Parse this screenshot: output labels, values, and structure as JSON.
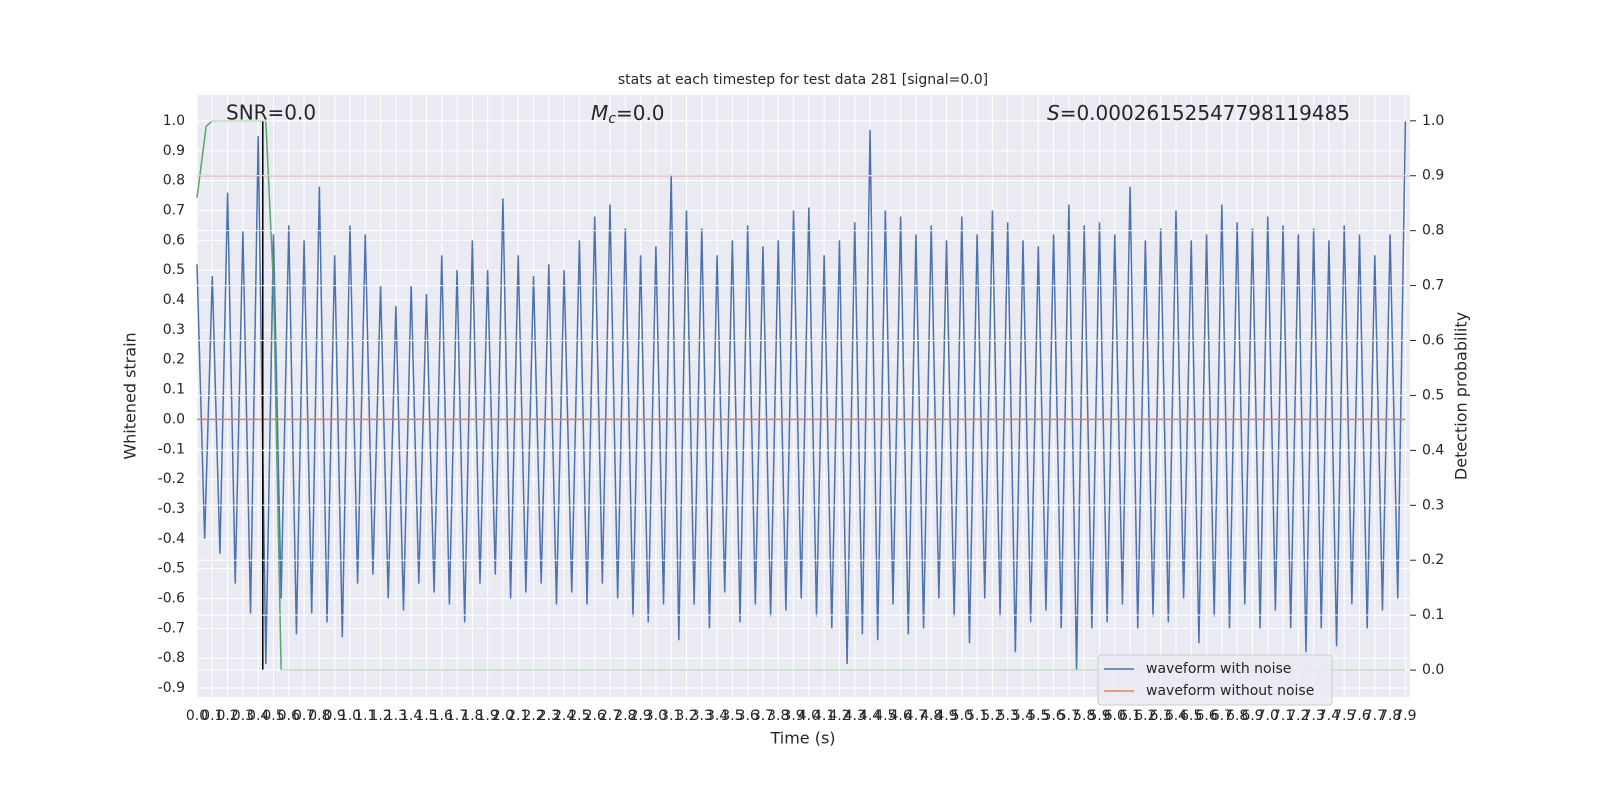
{
  "chart_data": {
    "type": "line",
    "title": "stats at each timestep for test data 281 [signal=0.0]",
    "x_label": "Time (s)",
    "y_label": "Whitened strain",
    "y2_label": "Detection probability",
    "annotations": {
      "snr": "SNR=0.0",
      "mc_symbol": "M",
      "mc_subscript": "c",
      "mc_value": "=0.0",
      "s_symbol": "S",
      "s_value": "=0.00026152547798119485"
    },
    "xlim": [
      0,
      7.93
    ],
    "ylim": [
      -0.93,
      1.087
    ],
    "y2lim": [
      -0.049,
      1.047
    ],
    "xticks": [
      {
        "value": 0,
        "label": "0.0"
      },
      0.1,
      0.2,
      0.3,
      0.4,
      0.5,
      0.6,
      0.7,
      0.8,
      0.9,
      {
        "value": 1,
        "label": "1.0"
      },
      1.1,
      1.2,
      1.3,
      1.4,
      1.5,
      1.6,
      1.7,
      1.8,
      1.9,
      {
        "value": 2,
        "label": "2.0"
      },
      2.1,
      2.2,
      2.3,
      2.4,
      2.5,
      2.6,
      2.7,
      2.8,
      2.9,
      {
        "value": 3,
        "label": "3.0"
      },
      3.1,
      3.2,
      3.3,
      3.4,
      3.5,
      3.6,
      3.7,
      3.8,
      3.9,
      {
        "value": 4,
        "label": "4.0"
      },
      4.1,
      4.2,
      4.3,
      4.4,
      4.5,
      4.6,
      4.7,
      4.8,
      4.9,
      {
        "value": 5,
        "label": "5.0"
      },
      5.1,
      5.2,
      5.3,
      5.4,
      5.5,
      5.6,
      5.7,
      5.8,
      5.9,
      {
        "value": 6,
        "label": "6.0"
      },
      6.1,
      6.2,
      6.3,
      6.4,
      6.5,
      6.6,
      6.7,
      6.8,
      6.9,
      {
        "value": 7,
        "label": "7.0"
      },
      7.1,
      7.2,
      7.3,
      7.4,
      7.5,
      7.6,
      7.7,
      7.8,
      7.9
    ],
    "yticks": [
      {
        "value": 1,
        "label": "1.0"
      },
      0.9,
      0.8,
      0.7,
      0.6,
      0.5,
      0.4,
      0.3,
      0.2,
      0.1,
      {
        "value": 0,
        "label": "0.0"
      },
      -0.1,
      -0.2,
      -0.3,
      -0.4,
      -0.5,
      -0.6,
      -0.7,
      -0.8,
      -0.9
    ],
    "y2ticks": [
      {
        "value": 0,
        "label": "0.0"
      },
      0.1,
      0.2,
      0.3,
      0.4,
      0.5,
      0.6,
      0.7,
      0.8,
      0.9,
      {
        "value": 1,
        "label": "1.0"
      }
    ],
    "grid": true,
    "legend": "lower right",
    "series": [
      {
        "name": "waveform with noise",
        "color": "#4c72b0",
        "x": [
          0,
          0.05,
          0.1,
          0.15,
          0.2,
          0.25,
          0.3,
          0.35,
          0.4,
          0.45,
          0.5,
          0.55,
          0.6,
          0.65,
          0.7,
          0.75,
          0.8,
          0.85,
          0.9,
          0.95,
          1,
          1.05,
          1.1,
          1.15,
          1.2,
          1.25,
          1.3,
          1.35,
          1.4,
          1.45,
          1.5,
          1.55,
          1.6,
          1.65,
          1.7,
          1.75,
          1.8,
          1.85,
          1.9,
          1.95,
          2,
          2.05,
          2.1,
          2.15,
          2.2,
          2.25,
          2.3,
          2.35,
          2.4,
          2.45,
          2.5,
          2.55,
          2.6,
          2.65,
          2.7,
          2.75,
          2.8,
          2.85,
          2.9,
          2.95,
          3,
          3.05,
          3.1,
          3.15,
          3.2,
          3.25,
          3.3,
          3.35,
          3.4,
          3.45,
          3.5,
          3.55,
          3.6,
          3.65,
          3.7,
          3.75,
          3.8,
          3.85,
          3.9,
          3.95,
          4,
          4.05,
          4.1,
          4.15,
          4.2,
          4.25,
          4.3,
          4.35,
          4.4,
          4.45,
          4.5,
          4.55,
          4.6,
          4.65,
          4.7,
          4.75,
          4.8,
          4.85,
          4.9,
          4.95,
          5,
          5.05,
          5.1,
          5.15,
          5.2,
          5.25,
          5.3,
          5.35,
          5.4,
          5.45,
          5.5,
          5.55,
          5.6,
          5.65,
          5.7,
          5.75,
          5.8,
          5.85,
          5.9,
          5.95,
          6,
          6.05,
          6.1,
          6.15,
          6.2,
          6.25,
          6.3,
          6.35,
          6.4,
          6.45,
          6.5,
          6.55,
          6.6,
          6.65,
          6.7,
          6.75,
          6.8,
          6.85,
          6.9,
          6.95,
          7,
          7.05,
          7.1,
          7.15,
          7.2,
          7.25,
          7.3,
          7.35,
          7.4,
          7.45,
          7.5,
          7.55,
          7.6,
          7.65,
          7.7,
          7.75,
          7.8,
          7.85,
          7.9
        ],
        "values": [
          0.52,
          -0.4,
          0.48,
          -0.45,
          0.76,
          -0.55,
          0.63,
          -0.65,
          0.95,
          -0.82,
          0.62,
          -0.6,
          0.65,
          -0.72,
          0.6,
          -0.65,
          0.78,
          -0.68,
          0.55,
          -0.73,
          0.65,
          -0.55,
          0.62,
          -0.52,
          0.45,
          -0.6,
          0.38,
          -0.64,
          0.45,
          -0.55,
          0.42,
          -0.58,
          0.55,
          -0.62,
          0.5,
          -0.68,
          0.6,
          -0.55,
          0.5,
          -0.52,
          0.74,
          -0.6,
          0.55,
          -0.58,
          0.48,
          -0.55,
          0.52,
          -0.62,
          0.5,
          -0.58,
          0.6,
          -0.62,
          0.68,
          -0.55,
          0.72,
          -0.6,
          0.64,
          -0.66,
          0.55,
          -0.68,
          0.58,
          -0.62,
          0.82,
          -0.74,
          0.7,
          -0.62,
          0.64,
          -0.7,
          0.55,
          -0.58,
          0.6,
          -0.68,
          0.65,
          -0.62,
          0.58,
          -0.66,
          0.6,
          -0.64,
          0.7,
          -0.6,
          0.71,
          -0.66,
          0.55,
          -0.7,
          0.6,
          -0.82,
          0.66,
          -0.72,
          0.97,
          -0.74,
          0.7,
          -0.62,
          0.68,
          -0.72,
          0.62,
          -0.7,
          0.65,
          -0.6,
          0.6,
          -0.66,
          0.68,
          -0.75,
          0.62,
          -0.6,
          0.7,
          -0.66,
          0.66,
          -0.78,
          0.6,
          -0.68,
          0.58,
          -0.64,
          0.62,
          -0.7,
          0.72,
          -0.84,
          0.65,
          -0.7,
          0.66,
          -0.68,
          0.62,
          -0.62,
          0.78,
          -0.7,
          0.6,
          -0.66,
          0.64,
          -0.68,
          0.7,
          -0.6,
          0.6,
          -0.75,
          0.62,
          -0.66,
          0.72,
          -0.7,
          0.66,
          -0.62,
          0.64,
          -0.7,
          0.68,
          -0.64,
          0.65,
          -0.7,
          0.62,
          -0.78,
          0.64,
          -0.7,
          0.6,
          -0.76,
          0.65,
          -0.62,
          0.62,
          -0.7,
          0.55,
          -0.64,
          0.62,
          -0.6,
          1.0
        ]
      },
      {
        "name": "waveform without noise",
        "color": "#dd8452",
        "x": [
          0,
          7.9
        ],
        "values": [
          0,
          0
        ]
      }
    ],
    "probability": {
      "color": "#55a868",
      "axis": "y2",
      "x": [
        0,
        0.06,
        0.1,
        0.2,
        0.3,
        0.4,
        0.45,
        0.5,
        0.55,
        7.9
      ],
      "values": [
        0.86,
        0.99,
        1.0,
        1.0,
        1.0,
        1.0,
        1.0,
        0.7,
        0.0,
        0.0
      ]
    },
    "threshold": {
      "value": 0.9,
      "axis": "y2",
      "color": "#c44e52"
    },
    "marker": {
      "x": 0.43,
      "y2_range": [
        0,
        1
      ],
      "color": "#000000"
    }
  }
}
